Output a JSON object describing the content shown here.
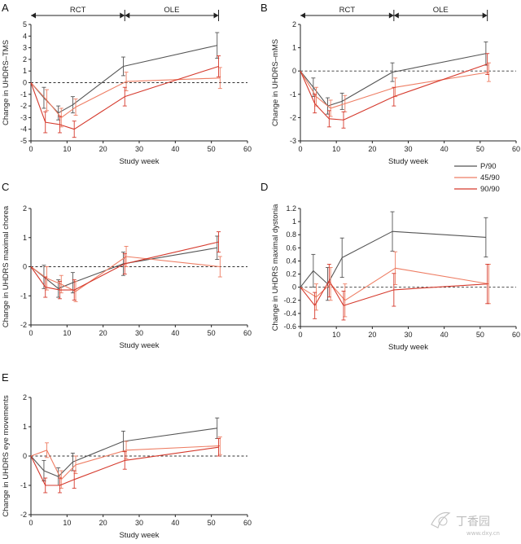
{
  "colors": {
    "P/90": "#555555",
    "45/90": "#ee7d63",
    "90/90": "#d5392c",
    "axis": "#222222",
    "zero_line": "#333333"
  },
  "legend": {
    "placement": "right",
    "entries": [
      "P/90",
      "45/90",
      "90/90"
    ]
  },
  "watermark": {
    "text": "丁香园",
    "sub": "www.dxy.cn"
  },
  "chart_data": [
    {
      "panel": "A",
      "type": "line",
      "xlabel": "Study week",
      "ylabel": "Change in UHDRS–TMS",
      "xlim": [
        0,
        60
      ],
      "ylim": [
        -5,
        5
      ],
      "xticks": [
        0,
        10,
        20,
        30,
        40,
        50,
        60
      ],
      "yticks": [
        -5,
        -4,
        -3,
        -2,
        -1,
        0,
        1,
        2,
        3,
        4,
        5
      ],
      "grid": false,
      "phases": [
        {
          "label": "RCT",
          "from": 0,
          "to": 26
        },
        {
          "label": "OLE",
          "from": 26,
          "to": 52
        }
      ],
      "series": [
        {
          "name": "P/90",
          "x": [
            0,
            4,
            8,
            12,
            26,
            52
          ],
          "y": [
            0,
            -1.3,
            -2.6,
            -1.9,
            1.4,
            3.2
          ],
          "err": [
            0,
            0.9,
            0.6,
            0.7,
            0.8,
            1.1
          ]
        },
        {
          "name": "45/90",
          "x": [
            0,
            4,
            8,
            12,
            26,
            52
          ],
          "y": [
            0,
            -1.5,
            -3.0,
            -2.1,
            0.1,
            0.4
          ],
          "err": [
            0,
            0.9,
            0.8,
            0.7,
            0.8,
            0.9
          ]
        },
        {
          "name": "90/90",
          "x": [
            0,
            4,
            8,
            12,
            26,
            52
          ],
          "y": [
            0,
            -3.4,
            -3.6,
            -4.0,
            -1.2,
            1.4
          ],
          "err": [
            0,
            0.9,
            0.7,
            0.7,
            0.8,
            0.9
          ]
        }
      ]
    },
    {
      "panel": "B",
      "type": "line",
      "xlabel": "Study week",
      "ylabel": "Change in UHDRS–mMS",
      "xlim": [
        0,
        60
      ],
      "ylim": [
        -3,
        2
      ],
      "xticks": [
        0,
        10,
        20,
        30,
        40,
        50,
        60
      ],
      "yticks": [
        -3,
        -2,
        -1,
        0,
        1,
        2
      ],
      "grid": false,
      "phases": [
        {
          "label": "RCT",
          "from": 0,
          "to": 26
        },
        {
          "label": "OLE",
          "from": 26,
          "to": 52
        }
      ],
      "series": [
        {
          "name": "P/90",
          "x": [
            0,
            4,
            8,
            12,
            26,
            52
          ],
          "y": [
            0,
            -0.7,
            -1.5,
            -1.3,
            -0.05,
            0.75
          ],
          "err": [
            0,
            0.4,
            0.35,
            0.35,
            0.4,
            0.5
          ]
        },
        {
          "name": "45/90",
          "x": [
            0,
            4,
            8,
            12,
            26,
            52
          ],
          "y": [
            0,
            -1.1,
            -1.6,
            -1.4,
            -0.7,
            -0.05
          ],
          "err": [
            0,
            0.4,
            0.35,
            0.35,
            0.4,
            0.4
          ]
        },
        {
          "name": "90/90",
          "x": [
            0,
            4,
            8,
            12,
            26,
            52
          ],
          "y": [
            0,
            -1.4,
            -2.05,
            -2.1,
            -1.1,
            0.3
          ],
          "err": [
            0,
            0.4,
            0.35,
            0.35,
            0.4,
            0.45
          ]
        }
      ]
    },
    {
      "panel": "C",
      "type": "line",
      "xlabel": "Study week",
      "ylabel": "Change in UHDRS maximal chorea",
      "xlim": [
        0,
        60
      ],
      "ylim": [
        -2,
        2
      ],
      "xticks": [
        0,
        10,
        20,
        30,
        40,
        50,
        60
      ],
      "yticks": [
        -2,
        -1,
        0,
        1,
        2
      ],
      "grid": false,
      "series": [
        {
          "name": "P/90",
          "x": [
            0,
            4,
            8,
            12,
            26,
            52
          ],
          "y": [
            0,
            -0.35,
            -0.75,
            -0.55,
            0.1,
            0.65
          ],
          "err": [
            0,
            0.4,
            0.3,
            0.35,
            0.4,
            0.4
          ]
        },
        {
          "name": "45/90",
          "x": [
            0,
            4,
            8,
            12,
            26,
            52
          ],
          "y": [
            0,
            -0.4,
            -0.6,
            -0.85,
            0.35,
            0.0
          ],
          "err": [
            0,
            0.4,
            0.3,
            0.35,
            0.35,
            0.35
          ]
        },
        {
          "name": "90/90",
          "x": [
            0,
            4,
            8,
            12,
            26,
            52
          ],
          "y": [
            0,
            -0.7,
            -0.8,
            -0.8,
            0.1,
            0.85
          ],
          "err": [
            0,
            0.35,
            0.3,
            0.35,
            0.35,
            0.35
          ]
        }
      ]
    },
    {
      "panel": "D",
      "type": "line",
      "xlabel": "Study week",
      "ylabel": "Change in UHDRS maximal dystonia",
      "xlim": [
        0,
        60
      ],
      "ylim": [
        -0.6,
        1.2
      ],
      "xticks": [
        0,
        10,
        20,
        30,
        40,
        50,
        60
      ],
      "yticks": [
        -0.6,
        -0.4,
        -0.2,
        0,
        0.2,
        0.4,
        0.6,
        0.8,
        1.0,
        1.2
      ],
      "grid": false,
      "series": [
        {
          "name": "P/90",
          "x": [
            0,
            4,
            8,
            12,
            26,
            52
          ],
          "y": [
            0,
            0.25,
            0.05,
            0.45,
            0.85,
            0.76
          ],
          "err": [
            0,
            0.25,
            0.25,
            0.3,
            0.3,
            0.3
          ]
        },
        {
          "name": "45/90",
          "x": [
            0,
            4,
            8,
            12,
            26,
            52
          ],
          "y": [
            0,
            -0.15,
            0.05,
            -0.2,
            0.29,
            0.05
          ],
          "err": [
            0,
            0.2,
            0.25,
            0.25,
            0.25,
            0.3
          ]
        },
        {
          "name": "90/90",
          "x": [
            0,
            4,
            8,
            12,
            26,
            52
          ],
          "y": [
            0,
            -0.28,
            0.1,
            -0.28,
            -0.04,
            0.05
          ],
          "err": [
            0,
            0.2,
            0.25,
            0.22,
            0.25,
            0.3
          ]
        }
      ]
    },
    {
      "panel": "E",
      "type": "line",
      "xlabel": "Study week",
      "ylabel": "Change in UHDRS eye movements",
      "xlim": [
        0,
        60
      ],
      "ylim": [
        -2,
        2
      ],
      "xticks": [
        0,
        10,
        20,
        30,
        40,
        50,
        60
      ],
      "yticks": [
        -2,
        -1,
        0,
        1,
        2
      ],
      "grid": false,
      "series": [
        {
          "name": "P/90",
          "x": [
            0,
            4,
            8,
            12,
            26,
            52
          ],
          "y": [
            0,
            -0.5,
            -0.7,
            -0.2,
            0.5,
            0.95
          ],
          "err": [
            0,
            0.35,
            0.3,
            0.3,
            0.35,
            0.35
          ]
        },
        {
          "name": "45/90",
          "x": [
            0,
            4,
            8,
            12,
            26,
            52
          ],
          "y": [
            0,
            0.2,
            -0.8,
            -0.3,
            0.2,
            0.35
          ],
          "err": [
            0,
            0.25,
            0.3,
            0.3,
            0.3,
            0.3
          ]
        },
        {
          "name": "90/90",
          "x": [
            0,
            4,
            8,
            12,
            26,
            52
          ],
          "y": [
            0,
            -1.0,
            -1.0,
            -0.8,
            -0.15,
            0.3
          ],
          "err": [
            0,
            0.25,
            0.25,
            0.3,
            0.3,
            0.3
          ]
        }
      ]
    }
  ]
}
